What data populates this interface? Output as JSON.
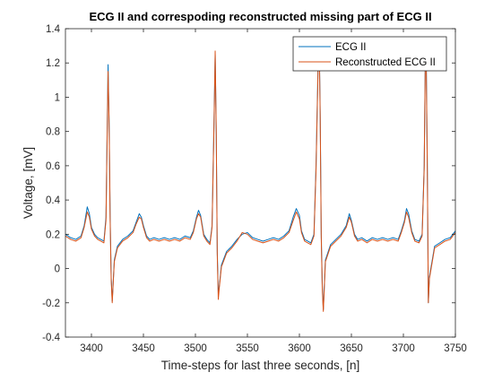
{
  "chart_data": {
    "type": "line",
    "title": "ECG II and correspoding reconstructed missing part of ECG II",
    "xlabel": "Time-steps for last three seconds, [n]",
    "ylabel": "Voltage, [mV]",
    "xlim": [
      3375,
      3750
    ],
    "ylim": [
      -0.4,
      1.4
    ],
    "xticks": [
      3400,
      3450,
      3500,
      3550,
      3600,
      3650,
      3700,
      3750
    ],
    "yticks": [
      -0.4,
      -0.2,
      0,
      0.2,
      0.4,
      0.6,
      0.8,
      1,
      1.2,
      1.4
    ],
    "grid": false,
    "legend": "top-right",
    "colors": {
      "ECG II": "#0072BD",
      "Reconstructed ECG II": "#D95319"
    },
    "series": [
      {
        "name": "ECG II",
        "color": "#0072BD",
        "x": [
          3375,
          3380,
          3385,
          3390,
          3393,
          3396,
          3398,
          3400,
          3403,
          3406,
          3409,
          3412,
          3414,
          3416,
          3417,
          3418,
          3419,
          3420,
          3422,
          3425,
          3430,
          3435,
          3440,
          3443,
          3446,
          3448,
          3450,
          3453,
          3456,
          3460,
          3465,
          3470,
          3475,
          3480,
          3485,
          3490,
          3495,
          3498,
          3501,
          3503,
          3505,
          3508,
          3511,
          3514,
          3516,
          3518,
          3519,
          3520,
          3521,
          3522,
          3523,
          3525,
          3530,
          3535,
          3540,
          3545,
          3550,
          3555,
          3560,
          3565,
          3570,
          3575,
          3580,
          3585,
          3590,
          3594,
          3597,
          3600,
          3602,
          3605,
          3608,
          3611,
          3614,
          3616,
          3618,
          3619,
          3620,
          3621,
          3622,
          3623,
          3625,
          3630,
          3635,
          3640,
          3645,
          3648,
          3650,
          3653,
          3656,
          3660,
          3665,
          3670,
          3675,
          3680,
          3685,
          3690,
          3695,
          3698,
          3701,
          3703,
          3705,
          3708,
          3711,
          3715,
          3718,
          3720,
          3721,
          3722,
          3723,
          3724,
          3725,
          3730,
          3735,
          3740,
          3745,
          3750
        ],
        "values": [
          0.2,
          0.18,
          0.17,
          0.19,
          0.25,
          0.36,
          0.32,
          0.24,
          0.2,
          0.18,
          0.17,
          0.16,
          0.3,
          1.19,
          0.85,
          0.3,
          -0.05,
          -0.19,
          0.05,
          0.13,
          0.17,
          0.19,
          0.22,
          0.27,
          0.32,
          0.3,
          0.25,
          0.19,
          0.17,
          0.18,
          0.17,
          0.18,
          0.17,
          0.18,
          0.17,
          0.19,
          0.18,
          0.22,
          0.3,
          0.34,
          0.31,
          0.2,
          0.17,
          0.15,
          0.25,
          0.9,
          1.25,
          0.8,
          0.1,
          -0.15,
          -0.1,
          0.02,
          0.1,
          0.13,
          0.17,
          0.2,
          0.21,
          0.18,
          0.17,
          0.16,
          0.17,
          0.18,
          0.17,
          0.19,
          0.22,
          0.3,
          0.35,
          0.31,
          0.22,
          0.17,
          0.16,
          0.15,
          0.2,
          0.6,
          1.2,
          1.35,
          0.9,
          0.2,
          -0.1,
          -0.24,
          0.05,
          0.14,
          0.17,
          0.2,
          0.25,
          0.32,
          0.28,
          0.2,
          0.17,
          0.18,
          0.16,
          0.18,
          0.17,
          0.18,
          0.17,
          0.18,
          0.17,
          0.22,
          0.28,
          0.35,
          0.32,
          0.22,
          0.17,
          0.16,
          0.2,
          0.6,
          1.2,
          1.2,
          0.6,
          -0.2,
          -0.05,
          0.13,
          0.15,
          0.17,
          0.18,
          0.22
        ]
      },
      {
        "name": "Reconstructed ECG II",
        "color": "#D95319",
        "x": [
          3375,
          3380,
          3385,
          3390,
          3393,
          3396,
          3398,
          3400,
          3403,
          3406,
          3409,
          3412,
          3414,
          3416,
          3417,
          3418,
          3419,
          3420,
          3422,
          3425,
          3430,
          3435,
          3440,
          3443,
          3446,
          3448,
          3450,
          3453,
          3456,
          3460,
          3465,
          3470,
          3475,
          3480,
          3485,
          3490,
          3495,
          3498,
          3501,
          3503,
          3505,
          3508,
          3511,
          3514,
          3516,
          3518,
          3519,
          3520,
          3521,
          3522,
          3523,
          3525,
          3530,
          3535,
          3540,
          3545,
          3550,
          3555,
          3560,
          3565,
          3570,
          3575,
          3580,
          3585,
          3590,
          3594,
          3597,
          3600,
          3602,
          3605,
          3608,
          3611,
          3614,
          3616,
          3618,
          3619,
          3620,
          3621,
          3622,
          3623,
          3625,
          3630,
          3635,
          3640,
          3645,
          3648,
          3650,
          3653,
          3656,
          3660,
          3665,
          3670,
          3675,
          3680,
          3685,
          3690,
          3695,
          3698,
          3701,
          3703,
          3705,
          3708,
          3711,
          3715,
          3718,
          3720,
          3721,
          3722,
          3723,
          3724,
          3725,
          3730,
          3735,
          3740,
          3745,
          3750
        ],
        "values": [
          0.19,
          0.17,
          0.16,
          0.18,
          0.24,
          0.33,
          0.3,
          0.23,
          0.19,
          0.17,
          0.16,
          0.15,
          0.28,
          1.15,
          0.84,
          0.28,
          -0.07,
          -0.2,
          0.04,
          0.12,
          0.16,
          0.18,
          0.21,
          0.26,
          0.3,
          0.29,
          0.24,
          0.18,
          0.16,
          0.17,
          0.16,
          0.17,
          0.16,
          0.17,
          0.16,
          0.18,
          0.17,
          0.21,
          0.29,
          0.32,
          0.3,
          0.19,
          0.16,
          0.14,
          0.24,
          0.88,
          1.27,
          0.82,
          0.08,
          -0.18,
          -0.11,
          0.01,
          0.09,
          0.12,
          0.16,
          0.21,
          0.2,
          0.17,
          0.16,
          0.15,
          0.16,
          0.17,
          0.16,
          0.18,
          0.21,
          0.28,
          0.33,
          0.29,
          0.21,
          0.16,
          0.15,
          0.14,
          0.19,
          0.58,
          1.18,
          1.33,
          0.88,
          0.18,
          -0.12,
          -0.25,
          0.04,
          0.13,
          0.16,
          0.19,
          0.24,
          0.3,
          0.27,
          0.19,
          0.16,
          0.17,
          0.15,
          0.17,
          0.16,
          0.17,
          0.16,
          0.17,
          0.16,
          0.21,
          0.27,
          0.33,
          0.3,
          0.21,
          0.16,
          0.15,
          0.19,
          0.58,
          1.18,
          1.18,
          0.58,
          -0.2,
          -0.06,
          0.12,
          0.14,
          0.16,
          0.17,
          0.21
        ]
      }
    ]
  }
}
